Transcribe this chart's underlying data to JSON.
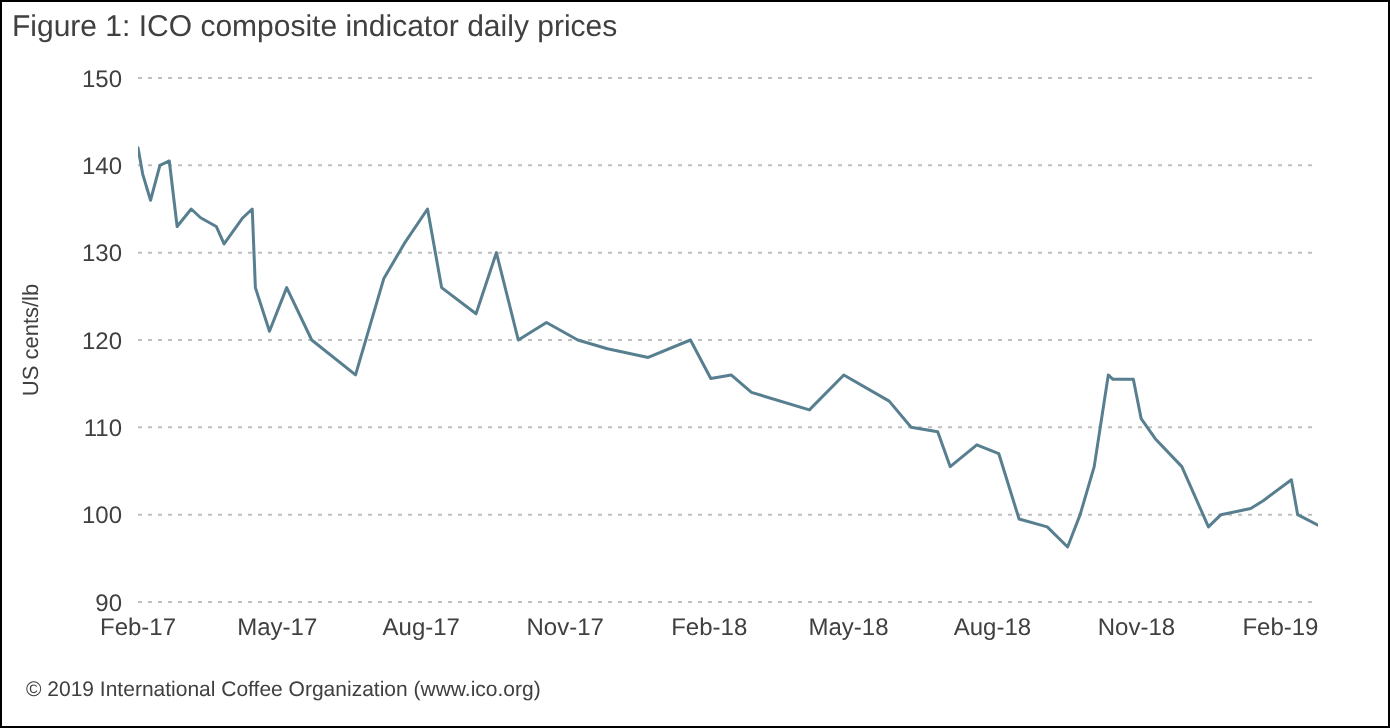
{
  "chart_data": {
    "type": "line",
    "title": "Figure 1: ICO composite indicator daily prices",
    "ylabel": "US cents/lb",
    "annotations": [
      "© 2019 International Coffee Organization (www.ico.org)"
    ],
    "x": [
      "2017-02-01",
      "2017-02-04",
      "2017-02-09",
      "2017-02-15",
      "2017-02-21",
      "2017-02-26",
      "2017-03-07",
      "2017-03-13",
      "2017-03-23",
      "2017-03-28",
      "2017-04-09",
      "2017-04-15",
      "2017-04-17",
      "2017-04-26",
      "2017-05-07",
      "2017-05-23",
      "2017-06-20",
      "2017-07-08",
      "2017-07-21",
      "2017-08-05",
      "2017-08-14",
      "2017-09-05",
      "2017-09-18",
      "2017-10-02",
      "2017-10-20",
      "2017-11-09",
      "2017-11-28",
      "2017-12-24",
      "2018-01-20",
      "2018-02-02",
      "2018-02-15",
      "2018-02-28",
      "2018-04-06",
      "2018-04-28",
      "2018-05-27",
      "2018-06-10",
      "2018-06-27",
      "2018-07-05",
      "2018-07-22",
      "2018-08-05",
      "2018-08-18",
      "2018-09-05",
      "2018-09-18",
      "2018-09-26",
      "2018-10-05",
      "2018-10-14",
      "2018-10-17",
      "2018-10-30",
      "2018-11-04",
      "2018-11-13",
      "2018-11-30",
      "2018-12-17",
      "2018-12-25",
      "2019-01-13",
      "2019-01-21",
      "2019-02-08",
      "2019-02-12",
      "2019-02-25"
    ],
    "series": [
      {
        "color": "#587f8f",
        "values": [
          142,
          139,
          136,
          140,
          140.5,
          133,
          135,
          134,
          133,
          131,
          134,
          135,
          126,
          121,
          126,
          120,
          116,
          127,
          131,
          135,
          126,
          123,
          130,
          120,
          122,
          120,
          119,
          118,
          120,
          115.6,
          116,
          114,
          112,
          116,
          113,
          110,
          109.5,
          105.5,
          108,
          107,
          99.5,
          98.6,
          96.3,
          100,
          105.5,
          116,
          115.5,
          115.5,
          111,
          108.7,
          105.5,
          98.6,
          100,
          100.7,
          101.6,
          104,
          100,
          98.8
        ]
      }
    ],
    "xlim": [
      "2017-02-01",
      "2019-02-25"
    ],
    "xticks": [
      {
        "value": "2017-02-01",
        "label": "Feb-17"
      },
      {
        "value": "2017-05-01",
        "label": "May-17"
      },
      {
        "value": "2017-08-01",
        "label": "Aug-17"
      },
      {
        "value": "2017-11-01",
        "label": "Nov-17"
      },
      {
        "value": "2018-02-01",
        "label": "Feb-18"
      },
      {
        "value": "2018-05-01",
        "label": "May-18"
      },
      {
        "value": "2018-08-01",
        "label": "Aug-18"
      },
      {
        "value": "2018-11-01",
        "label": "Nov-18"
      },
      {
        "value": "2019-02-01",
        "label": "Feb-19"
      }
    ],
    "ylim": [
      90,
      150
    ],
    "yticks": [
      90,
      100,
      110,
      120,
      130,
      140,
      150
    ],
    "grid": "y",
    "marker": "none",
    "line_style": "solid"
  }
}
